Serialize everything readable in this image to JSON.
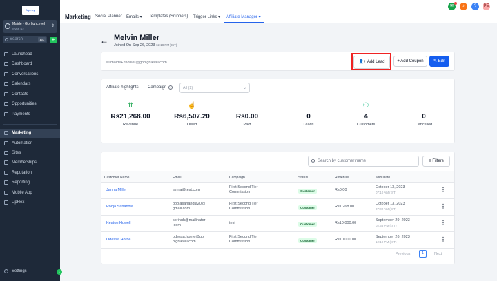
{
  "sidebar": {
    "logo_text": "Agency",
    "account_name": "Maide - GoHighLevel",
    "account_location": "Idylla, NJ",
    "search_placeholder": "Search",
    "search_shortcut": "⌘K",
    "items": [
      {
        "label": "Launchpad"
      },
      {
        "label": "Dashboard"
      },
      {
        "label": "Conversations"
      },
      {
        "label": "Calendars"
      },
      {
        "label": "Contacts"
      },
      {
        "label": "Opportunities"
      },
      {
        "label": "Payments"
      },
      {
        "label": "Marketing",
        "active": true
      },
      {
        "label": "Automation"
      },
      {
        "label": "Sites"
      },
      {
        "label": "Memberships"
      },
      {
        "label": "Reputation"
      },
      {
        "label": "Reporting"
      },
      {
        "label": "Mobile App"
      },
      {
        "label": "UpHex"
      }
    ],
    "settings_label": "Settings"
  },
  "topbar": {
    "title": "Marketing",
    "tabs": [
      {
        "label": "Social Planner"
      },
      {
        "label": "Emails ▾"
      },
      {
        "label": "Templates (Snippets)"
      },
      {
        "label": "Trigger Links ▾"
      },
      {
        "label": "Affiliate Manager ▾",
        "active": true
      }
    ],
    "avatar_initials": "PE"
  },
  "affiliate": {
    "name": "Melvin Miller",
    "joined": "Joined On Sep 26, 2023",
    "joined_time": "12:18 PM (IST)",
    "email": "maide+2notlier@gohighlevel.com"
  },
  "buttons": {
    "add_lead": "Add Lead",
    "add_coupon": "Add Coupon",
    "edit": "Edit"
  },
  "highlights": {
    "title": "Affiliate highlights",
    "campaign_label": "Campaign",
    "campaign_value": "All (2)",
    "stats": [
      {
        "value": "Rs21,268.00",
        "label": "Revenue",
        "icon": "money-icon"
      },
      {
        "value": "Rs6,507.20",
        "label": "Owed",
        "icon": "hand-coin-icon"
      },
      {
        "value": "Rs0.00",
        "label": "Paid",
        "icon": ""
      },
      {
        "value": "0",
        "label": "Leads",
        "icon": ""
      },
      {
        "value": "4",
        "label": "Customers",
        "icon": "users-icon"
      },
      {
        "value": "0",
        "label": "Cancelled",
        "icon": ""
      }
    ]
  },
  "table": {
    "search_placeholder": "Search by customer name",
    "filters_label": "Filters",
    "headers": [
      "Customer Name",
      "Email",
      "Campaign",
      "Status",
      "Revenue",
      "Join Date"
    ],
    "rows": [
      {
        "name": "Janna Miller",
        "email1": "janna@test.com",
        "email2": "",
        "campaign1": "First Second Tier",
        "campaign2": "Commission",
        "status": "Customer",
        "revenue": "Rs0.00",
        "date": "October 13, 2023",
        "time": "07:10 AM (IST)"
      },
      {
        "name": "Pooja Sanandia",
        "email1": "poojasanandia20@",
        "email2": "gmail.com",
        "campaign1": "First Second Tier",
        "campaign2": "Commission",
        "status": "Customer",
        "revenue": "Rs1,268.00",
        "date": "October 13, 2023",
        "time": "07:02 AM (IST)"
      },
      {
        "name": "Keaton Howell",
        "email1": "sorinuh@mailinator",
        "email2": ".com",
        "campaign1": "test",
        "campaign2": "",
        "status": "Customer",
        "revenue": "Rs10,000.00",
        "date": "September 29, 2023",
        "time": "02:55 PM (IST)"
      },
      {
        "name": "Odessa Horne",
        "email1": "odessa.horne@go",
        "email2": "highlevel.com",
        "campaign1": "First Second Tier",
        "campaign2": "Commission",
        "status": "Customer",
        "revenue": "Rs10,000.00",
        "date": "September 26, 2023",
        "time": "12:19 PM (IST)"
      }
    ],
    "pagination": {
      "previous": "Previous",
      "current": "1",
      "next": "Next"
    }
  }
}
